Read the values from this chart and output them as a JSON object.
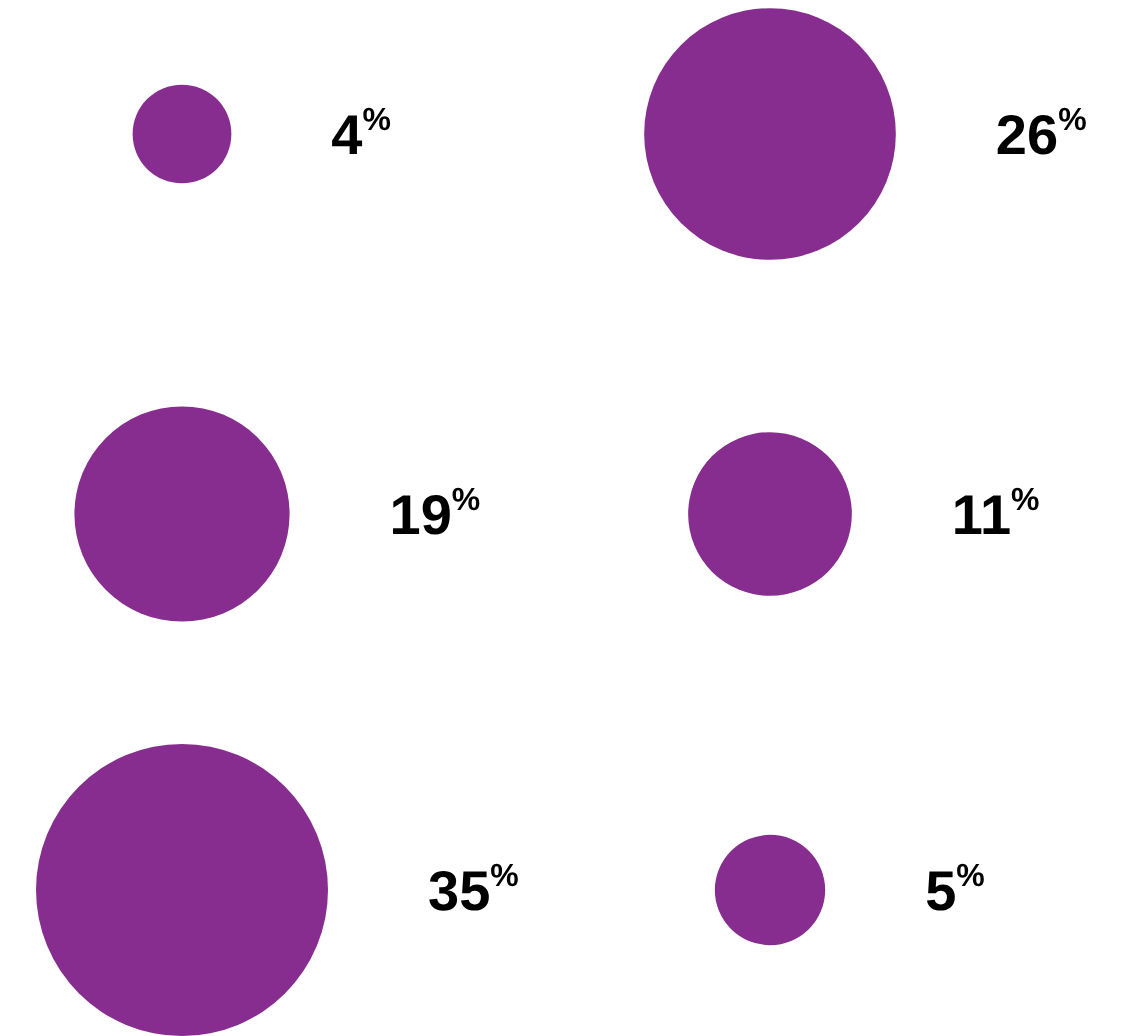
{
  "chart_data": {
    "type": "other",
    "color": "#862d8f",
    "data_labels": true,
    "values": [
      4,
      26,
      19,
      11,
      35,
      5
    ],
    "value_labels": [
      "4$^{%}$",
      "26$^{%}$",
      "19$^{%}$",
      "11$^{%}$",
      "35$^{%}$",
      "5$^{%}$"
    ]
  }
}
